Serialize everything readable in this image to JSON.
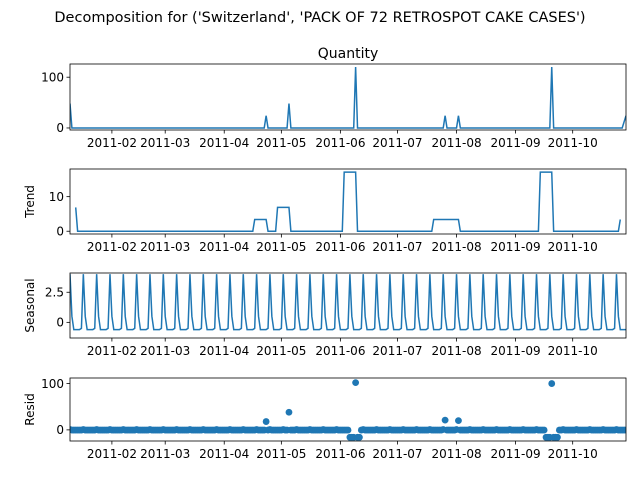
{
  "chart_data": {
    "type": "line",
    "suptitle": "Decomposition for ('Switzerland', 'PACK OF 72 RETROSPOT CAKE CASES')",
    "x_start": "2011-01-10",
    "x_end": "2011-10-29",
    "x_ticks": [
      "2011-02",
      "2011-03",
      "2011-04",
      "2011-05",
      "2011-06",
      "2011-07",
      "2011-08",
      "2011-09",
      "2011-10"
    ],
    "line_color": "#1f77b4",
    "panels": [
      {
        "key": "observed",
        "title": "Quantity",
        "ylabel": "",
        "style": "line",
        "ylim": [
          -4,
          126
        ],
        "yticks": [
          0,
          100
        ],
        "points": [
          [
            "2011-01-10",
            48
          ],
          [
            "2011-01-11",
            0
          ],
          [
            "2011-04-22",
            0
          ],
          [
            "2011-04-23",
            24
          ],
          [
            "2011-04-24",
            0
          ],
          [
            "2011-05-04",
            0
          ],
          [
            "2011-05-05",
            48
          ],
          [
            "2011-05-06",
            0
          ],
          [
            "2011-06-08",
            0
          ],
          [
            "2011-06-09",
            120
          ],
          [
            "2011-06-10",
            0
          ],
          [
            "2011-07-25",
            0
          ],
          [
            "2011-07-26",
            24
          ],
          [
            "2011-07-27",
            0
          ],
          [
            "2011-08-01",
            0
          ],
          [
            "2011-08-02",
            24
          ],
          [
            "2011-08-03",
            0
          ],
          [
            "2011-09-19",
            0
          ],
          [
            "2011-09-20",
            120
          ],
          [
            "2011-09-21",
            0
          ],
          [
            "2011-10-27",
            0
          ],
          [
            "2011-10-29",
            24
          ]
        ]
      },
      {
        "key": "trend",
        "title": "",
        "ylabel": "Trend",
        "style": "line",
        "ylim": [
          -0.8,
          18
        ],
        "yticks": [
          0,
          10
        ],
        "points": [
          [
            "2011-01-13",
            6.9
          ],
          [
            "2011-01-14",
            0
          ],
          [
            "2011-04-16",
            0
          ],
          [
            "2011-04-17",
            3.4
          ],
          [
            "2011-04-23",
            3.4
          ],
          [
            "2011-04-24",
            0
          ],
          [
            "2011-04-28",
            0
          ],
          [
            "2011-04-29",
            6.9
          ],
          [
            "2011-05-05",
            6.9
          ],
          [
            "2011-05-06",
            0
          ],
          [
            "2011-06-02",
            0
          ],
          [
            "2011-06-03",
            17.1
          ],
          [
            "2011-06-09",
            17.1
          ],
          [
            "2011-06-10",
            0
          ],
          [
            "2011-07-19",
            0
          ],
          [
            "2011-07-20",
            3.4
          ],
          [
            "2011-08-02",
            3.4
          ],
          [
            "2011-08-03",
            0
          ],
          [
            "2011-09-13",
            0
          ],
          [
            "2011-09-14",
            17.1
          ],
          [
            "2011-09-20",
            17.1
          ],
          [
            "2011-09-21",
            0
          ],
          [
            "2011-10-25",
            0
          ],
          [
            "2011-10-26",
            3.4
          ]
        ]
      },
      {
        "key": "seasonal",
        "title": "",
        "ylabel": "Seasonal",
        "style": "line",
        "ylim": [
          -1.3,
          4.1
        ],
        "yticks": [
          0.0,
          2.5
        ],
        "period_days": 7,
        "pattern": [
          4.0,
          0.5,
          -0.6,
          -0.6,
          -0.6,
          -0.6,
          -0.5
        ]
      },
      {
        "key": "resid",
        "title": "",
        "ylabel": "Resid",
        "style": "scatter",
        "ylim": [
          -24,
          112
        ],
        "yticks": [
          0,
          100
        ],
        "outliers": [
          [
            "2011-04-23",
            18
          ],
          [
            "2011-05-05",
            38
          ],
          [
            "2011-06-06",
            -16
          ],
          [
            "2011-06-07",
            -16
          ],
          [
            "2011-06-08",
            -16
          ],
          [
            "2011-06-09",
            102
          ],
          [
            "2011-06-10",
            -16
          ],
          [
            "2011-06-11",
            -16
          ],
          [
            "2011-07-26",
            21
          ],
          [
            "2011-08-02",
            20
          ],
          [
            "2011-09-17",
            -16
          ],
          [
            "2011-09-18",
            -16
          ],
          [
            "2011-09-19",
            -16
          ],
          [
            "2011-09-20",
            100
          ],
          [
            "2011-09-21",
            -16
          ],
          [
            "2011-09-22",
            -16
          ],
          [
            "2011-09-23",
            -16
          ]
        ]
      }
    ]
  }
}
